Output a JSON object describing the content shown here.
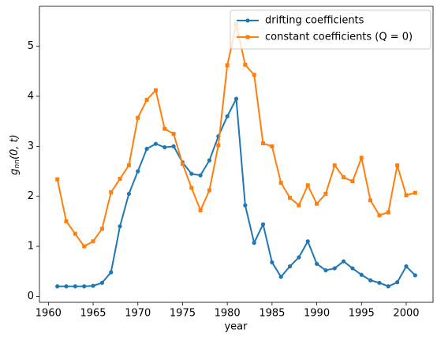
{
  "chart_data": {
    "type": "line",
    "xlabel": "year",
    "ylabel": {
      "symbol": "g",
      "subscript": "nn",
      "args": "(0, t)"
    },
    "x": [
      1961,
      1962,
      1963,
      1964,
      1965,
      1966,
      1967,
      1968,
      1969,
      1970,
      1971,
      1972,
      1973,
      1974,
      1975,
      1976,
      1977,
      1978,
      1979,
      1980,
      1981,
      1982,
      1983,
      1984,
      1985,
      1986,
      1987,
      1988,
      1989,
      1990,
      1991,
      1992,
      1993,
      1994,
      1995,
      1996,
      1997,
      1998,
      1999,
      2000,
      2001
    ],
    "series": [
      {
        "name": "drifting coefficients",
        "color": "#1f77b4",
        "marker": "circle",
        "values": [
          0.2,
          0.2,
          0.2,
          0.2,
          0.21,
          0.27,
          0.48,
          1.4,
          2.05,
          2.5,
          2.95,
          3.05,
          2.98,
          3.0,
          2.68,
          2.45,
          2.42,
          2.72,
          3.2,
          3.6,
          3.95,
          1.82,
          1.07,
          1.44,
          0.68,
          0.39,
          0.6,
          0.78,
          1.1,
          0.65,
          0.52,
          0.56,
          0.7,
          0.56,
          0.43,
          0.32,
          0.27,
          0.2,
          0.28,
          0.6,
          0.42
        ]
      },
      {
        "name": "constant coefficients (Q = 0)",
        "color": "#ff7f0e",
        "marker": "square",
        "values": [
          2.34,
          1.5,
          1.25,
          1.0,
          1.1,
          1.35,
          2.08,
          2.35,
          2.62,
          3.57,
          3.93,
          4.12,
          3.35,
          3.25,
          2.65,
          2.17,
          1.72,
          2.12,
          3.02,
          4.62,
          5.44,
          4.63,
          4.43,
          3.06,
          3.0,
          2.27,
          1.97,
          1.82,
          2.22,
          1.85,
          2.05,
          2.62,
          2.38,
          2.3,
          2.77,
          1.92,
          1.62,
          1.68,
          2.62,
          2.02,
          2.07
        ]
      }
    ],
    "xlim": [
      1959,
      2003
    ],
    "xticks": [
      1960,
      1965,
      1970,
      1975,
      1980,
      1985,
      1990,
      1995,
      2000
    ],
    "ylim": [
      -0.12,
      5.8
    ],
    "yticks": [
      0,
      1,
      2,
      3,
      4,
      5
    ],
    "legend": "upper right",
    "grid": false
  }
}
